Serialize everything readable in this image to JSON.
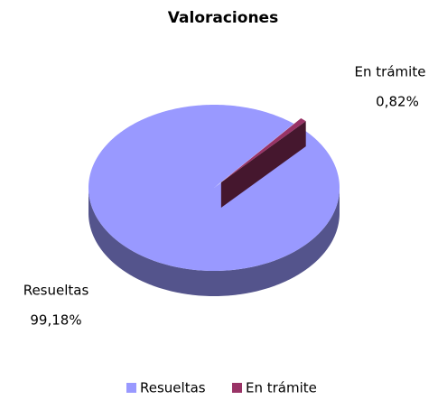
{
  "chart_data": {
    "type": "pie3d",
    "title": "Valoraciones",
    "categories": [
      "Resueltas",
      "En trámite"
    ],
    "values": [
      99.18,
      0.82
    ],
    "value_labels": [
      "99,18%",
      "0,82%"
    ],
    "colors": [
      "#9999ff",
      "#993366"
    ],
    "legend": "bottom"
  }
}
